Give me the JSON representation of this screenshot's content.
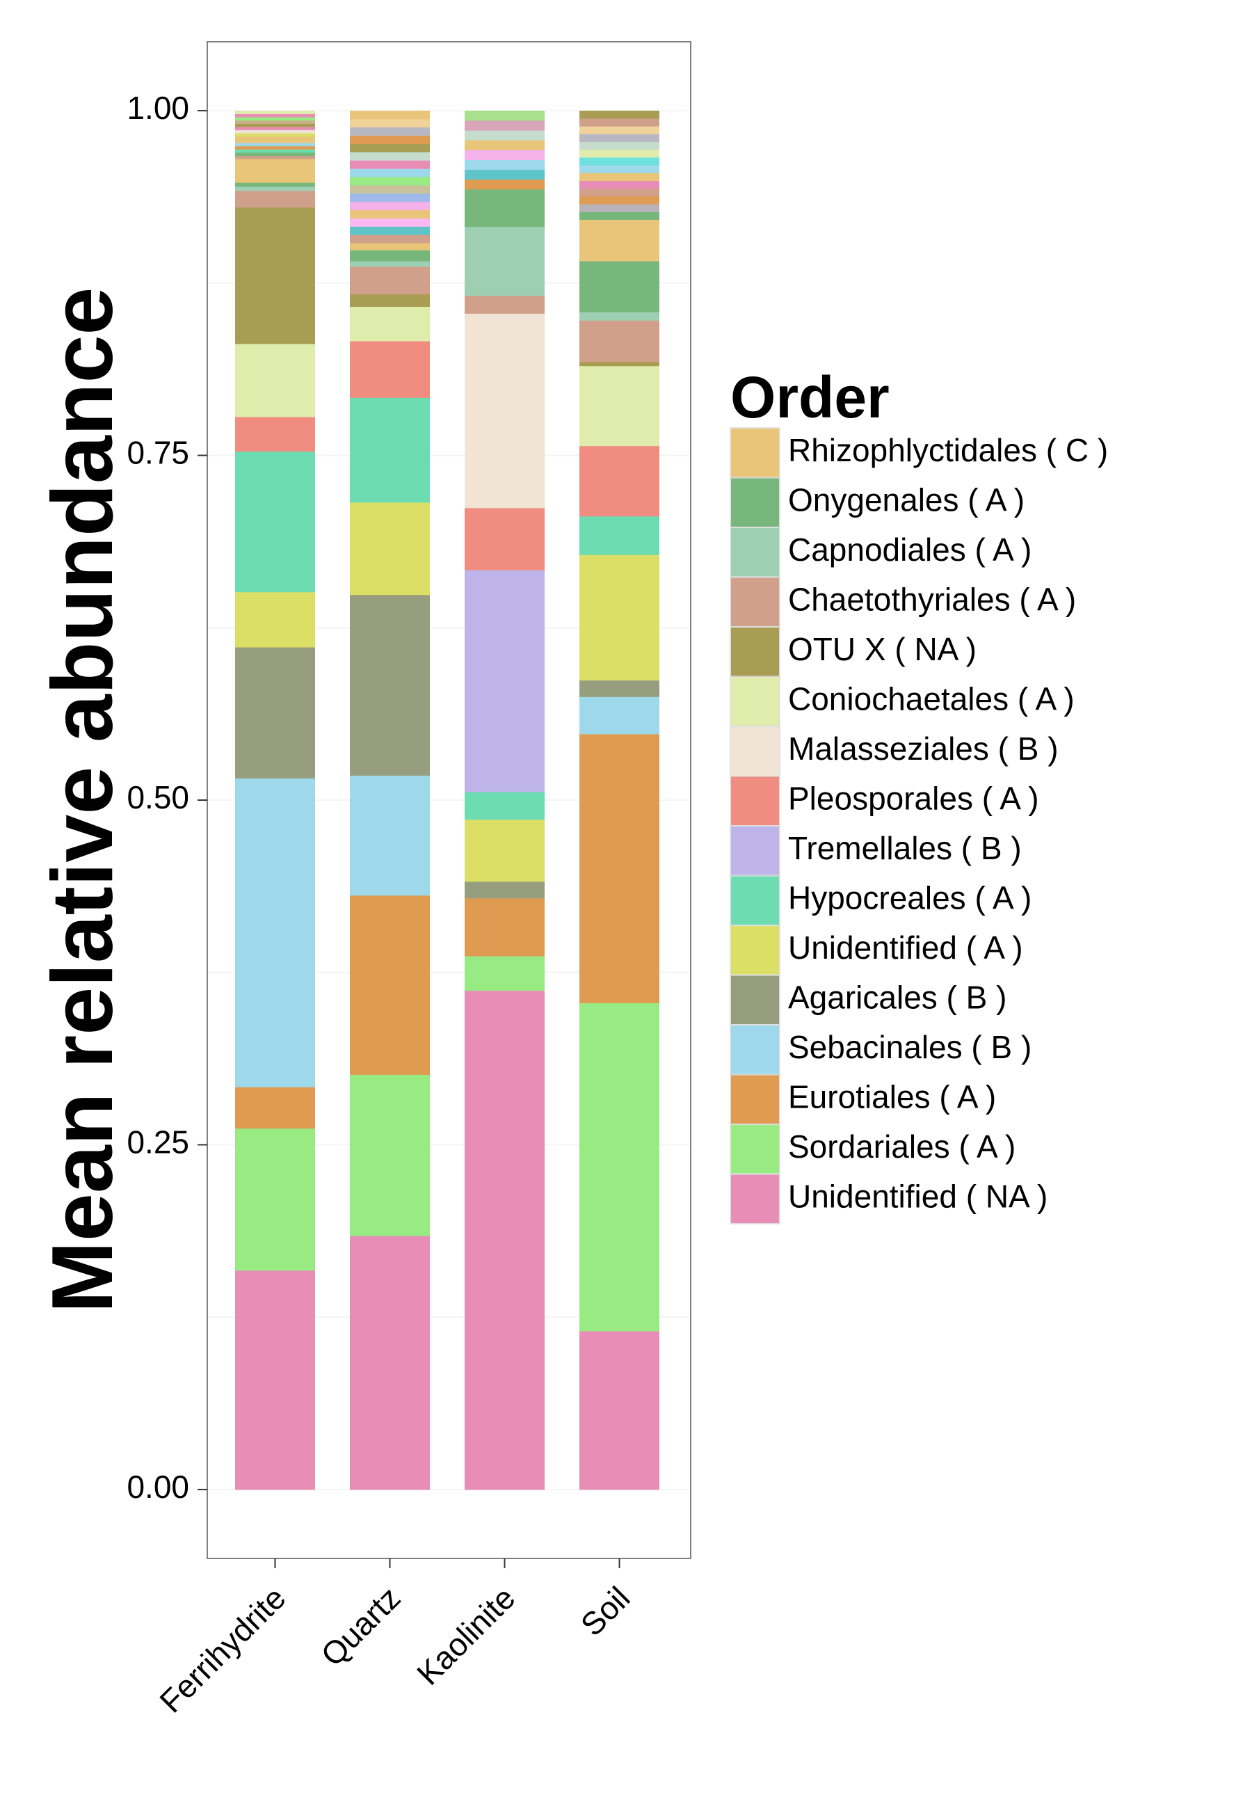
{
  "chart_data": {
    "type": "bar",
    "stacked": true,
    "ylabel": "Mean relative abundance",
    "xlabel": "",
    "ylim": [
      -0.05,
      1.05
    ],
    "yticks": [
      "0.00",
      "0.25",
      "0.50",
      "0.75",
      "1.00"
    ],
    "ytick_values": [
      0,
      0.25,
      0.5,
      0.75,
      1.0
    ],
    "grid": true,
    "legend_position": "right",
    "legend_title": "Order",
    "categories": [
      "Ferrihydrite",
      "Quartz",
      "Kaolinite",
      "Soil"
    ],
    "series": [
      {
        "name": "Unidentified ( NA )",
        "color": "#e88db5",
        "values": [
          0.159,
          0.184,
          0.362,
          0.115
        ]
      },
      {
        "name": "Sordariales ( A )",
        "color": "#98ea82",
        "values": [
          0.103,
          0.117,
          0.025,
          0.238
        ]
      },
      {
        "name": "Eurotiales ( A )",
        "color": "#e09b52",
        "values": [
          0.03,
          0.13,
          0.042,
          0.195
        ]
      },
      {
        "name": "Sebacinales ( B )",
        "color": "#9dd9ea",
        "values": [
          0.224,
          0.087,
          0.0,
          0.027
        ]
      },
      {
        "name": "Agaricales ( B )",
        "color": "#979e7f",
        "values": [
          0.095,
          0.131,
          0.012,
          0.012
        ]
      },
      {
        "name": "Unidentified ( A )",
        "color": "#dcdf66",
        "values": [
          0.04,
          0.067,
          0.045,
          0.091
        ]
      },
      {
        "name": "Hypocreales ( A )",
        "color": "#6ddcb1",
        "values": [
          0.102,
          0.076,
          0.02,
          0.028
        ]
      },
      {
        "name": "Tremellales ( B )",
        "color": "#beb4e9",
        "values": [
          0.0,
          0.0,
          0.161,
          0.0
        ]
      },
      {
        "name": "Pleosporales ( A )",
        "color": "#f08c80",
        "values": [
          0.025,
          0.041,
          0.045,
          0.051
        ]
      },
      {
        "name": "Malasseziales ( B )",
        "color": "#f1e4d4",
        "values": [
          0.0,
          0.0,
          0.141,
          0.0
        ]
      },
      {
        "name": "Coniochaetales ( A )",
        "color": "#e0ecab",
        "values": [
          0.053,
          0.025,
          0.0,
          0.058
        ]
      },
      {
        "name": "OTU X ( NA )",
        "color": "#a89d52",
        "values": [
          0.099,
          0.009,
          0.0,
          0.003
        ]
      },
      {
        "name": "Chaetothyriales ( A )",
        "color": "#d1a08b",
        "values": [
          0.012,
          0.02,
          0.013,
          0.03
        ]
      },
      {
        "name": "Capnodiales ( A )",
        "color": "#9ecfb2",
        "values": [
          0.003,
          0.004,
          0.05,
          0.006
        ]
      },
      {
        "name": "Onygenales ( A )",
        "color": "#77b77c",
        "values": [
          0.003,
          0.008,
          0.027,
          0.037
        ]
      },
      {
        "name": "Rhizophlyctidales ( C )",
        "color": "#e9c579",
        "values": [
          0.017,
          0.005,
          0.0,
          0.03
        ]
      }
    ],
    "other_segments": [
      {
        "category": "Ferrihydrite",
        "colors": [
          "#d1a08b",
          "#77b77c",
          "#6ddcb1",
          "#e09b52",
          "#9dd9ea",
          "#e9c579",
          "#e9c579",
          "#dcdf66",
          "#f1e4d4",
          "#e88db5",
          "#a89d52",
          "#c9b18b",
          "#98ea82",
          "#e88db5",
          "#e0ecab"
        ]
      },
      {
        "category": "Quartz",
        "colors": [
          "#d1a08b",
          "#5fc4c8",
          "#f9b9f0",
          "#e9c579",
          "#f5b2ea",
          "#9fb9ea",
          "#c9c29b",
          "#98ea82",
          "#9dd9ea",
          "#e88db5",
          "#c6dccd",
          "#a89d52",
          "#e09b52",
          "#b8b8c2",
          "#f1d29b",
          "#e9c579"
        ]
      },
      {
        "category": "Kaolinite",
        "colors": [
          "#e09b52",
          "#5fc4c8",
          "#9dd9ea",
          "#f5b2ea",
          "#e9c579",
          "#c6dccd",
          "#d9a5b9",
          "#a9e08d"
        ]
      },
      {
        "category": "Soil",
        "colors": [
          "#77b77c",
          "#b9b2b8",
          "#e09b52",
          "#d1a08b",
          "#e88db5",
          "#e9c579",
          "#9dd9ea",
          "#6fe0dd",
          "#e0ecab",
          "#c6dccd",
          "#b8b8c2",
          "#f1d29b",
          "#d1a08b",
          "#a89d52"
        ]
      }
    ]
  }
}
